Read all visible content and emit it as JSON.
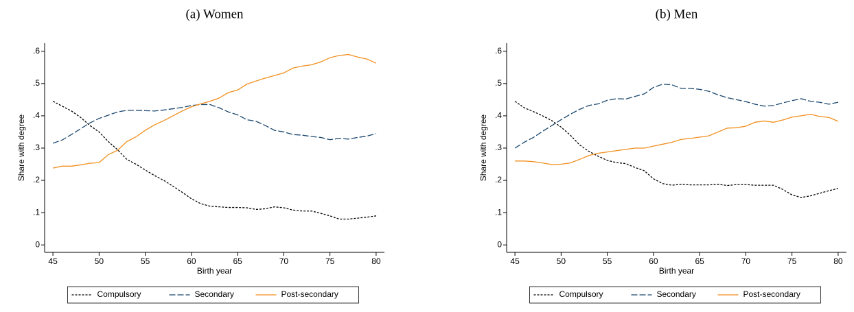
{
  "chart_data": [
    {
      "type": "line",
      "title": "(a) Women",
      "xlabel": "Birth year",
      "ylabel": "Share with degree",
      "x": [
        45,
        46,
        47,
        48,
        49,
        50,
        51,
        52,
        53,
        54,
        55,
        56,
        57,
        58,
        59,
        60,
        61,
        62,
        63,
        64,
        65,
        66,
        67,
        68,
        69,
        70,
        71,
        72,
        73,
        74,
        75,
        76,
        77,
        78,
        79,
        80
      ],
      "xlim": [
        44.1,
        80.9
      ],
      "xticks": [
        45,
        50,
        55,
        60,
        65,
        70,
        75,
        80
      ],
      "ylim": [
        -0.023,
        0.625
      ],
      "yticks": [
        0,
        {
          "value": 0.1,
          "label": ".1"
        },
        {
          "value": 0.2,
          "label": ".2"
        },
        {
          "value": 0.3,
          "label": ".3"
        },
        {
          "value": 0.4,
          "label": ".4"
        },
        {
          "value": 0.5,
          "label": ".5"
        },
        {
          "value": 0.6,
          "label": ".6"
        }
      ],
      "legend": "bottom",
      "series": [
        {
          "name": "Compulsory",
          "color": "#000000",
          "linestyle": "dotted",
          "values": [
            0.445,
            0.43,
            0.415,
            0.395,
            0.37,
            0.35,
            0.32,
            0.295,
            0.265,
            0.25,
            0.232,
            0.215,
            0.2,
            0.182,
            0.163,
            0.143,
            0.128,
            0.12,
            0.118,
            0.116,
            0.116,
            0.115,
            0.11,
            0.112,
            0.118,
            0.115,
            0.108,
            0.105,
            0.105,
            0.098,
            0.09,
            0.08,
            0.08,
            0.083,
            0.086,
            0.09
          ]
        },
        {
          "name": "Secondary",
          "color": "#1a476f",
          "linestyle": "dashed",
          "values": [
            0.315,
            0.325,
            0.342,
            0.36,
            0.378,
            0.392,
            0.402,
            0.412,
            0.417,
            0.417,
            0.416,
            0.415,
            0.418,
            0.422,
            0.426,
            0.432,
            0.435,
            0.435,
            0.425,
            0.412,
            0.403,
            0.388,
            0.383,
            0.37,
            0.355,
            0.35,
            0.342,
            0.34,
            0.336,
            0.333,
            0.326,
            0.33,
            0.328,
            0.333,
            0.337,
            0.345
          ]
        },
        {
          "name": "Post-secondary",
          "color": "#f28e1c",
          "linestyle": "solid",
          "values": [
            0.238,
            0.244,
            0.244,
            0.248,
            0.253,
            0.255,
            0.28,
            0.293,
            0.32,
            0.335,
            0.355,
            0.372,
            0.385,
            0.4,
            0.415,
            0.428,
            0.437,
            0.445,
            0.455,
            0.472,
            0.48,
            0.498,
            0.508,
            0.517,
            0.525,
            0.533,
            0.548,
            0.554,
            0.558,
            0.567,
            0.58,
            0.587,
            0.59,
            0.582,
            0.576,
            0.563
          ]
        }
      ]
    },
    {
      "type": "line",
      "title": "(b) Men",
      "xlabel": "Birth year",
      "ylabel": "Share with degree",
      "x": [
        45,
        46,
        47,
        48,
        49,
        50,
        51,
        52,
        53,
        54,
        55,
        56,
        57,
        58,
        59,
        60,
        61,
        62,
        63,
        64,
        65,
        66,
        67,
        68,
        69,
        70,
        71,
        72,
        73,
        74,
        75,
        76,
        77,
        78,
        79,
        80
      ],
      "xlim": [
        44.1,
        80.9
      ],
      "xticks": [
        45,
        50,
        55,
        60,
        65,
        70,
        75,
        80
      ],
      "ylim": [
        -0.023,
        0.625
      ],
      "yticks": [
        0,
        {
          "value": 0.1,
          "label": ".1"
        },
        {
          "value": 0.2,
          "label": ".2"
        },
        {
          "value": 0.3,
          "label": ".3"
        },
        {
          "value": 0.4,
          "label": ".4"
        },
        {
          "value": 0.5,
          "label": ".5"
        },
        {
          "value": 0.6,
          "label": ".6"
        }
      ],
      "legend": "bottom",
      "series": [
        {
          "name": "Compulsory",
          "color": "#000000",
          "linestyle": "dotted",
          "values": [
            0.445,
            0.425,
            0.413,
            0.4,
            0.385,
            0.365,
            0.34,
            0.31,
            0.29,
            0.275,
            0.262,
            0.255,
            0.252,
            0.24,
            0.23,
            0.205,
            0.19,
            0.185,
            0.188,
            0.186,
            0.186,
            0.186,
            0.188,
            0.184,
            0.187,
            0.187,
            0.185,
            0.185,
            0.185,
            0.172,
            0.155,
            0.147,
            0.152,
            0.16,
            0.168,
            0.175
          ]
        },
        {
          "name": "Secondary",
          "color": "#1a476f",
          "linestyle": "dashed",
          "values": [
            0.3,
            0.318,
            0.333,
            0.352,
            0.37,
            0.388,
            0.405,
            0.42,
            0.432,
            0.437,
            0.448,
            0.453,
            0.452,
            0.46,
            0.468,
            0.488,
            0.498,
            0.496,
            0.485,
            0.485,
            0.482,
            0.476,
            0.465,
            0.456,
            0.45,
            0.444,
            0.436,
            0.43,
            0.432,
            0.44,
            0.447,
            0.453,
            0.445,
            0.442,
            0.436,
            0.442
          ]
        },
        {
          "name": "Post-secondary",
          "color": "#f28e1c",
          "linestyle": "solid",
          "values": [
            0.26,
            0.26,
            0.258,
            0.254,
            0.249,
            0.25,
            0.254,
            0.265,
            0.277,
            0.284,
            0.288,
            0.292,
            0.296,
            0.3,
            0.3,
            0.306,
            0.312,
            0.318,
            0.327,
            0.33,
            0.334,
            0.338,
            0.35,
            0.362,
            0.363,
            0.368,
            0.38,
            0.384,
            0.38,
            0.387,
            0.396,
            0.4,
            0.405,
            0.398,
            0.395,
            0.383
          ]
        }
      ]
    }
  ]
}
